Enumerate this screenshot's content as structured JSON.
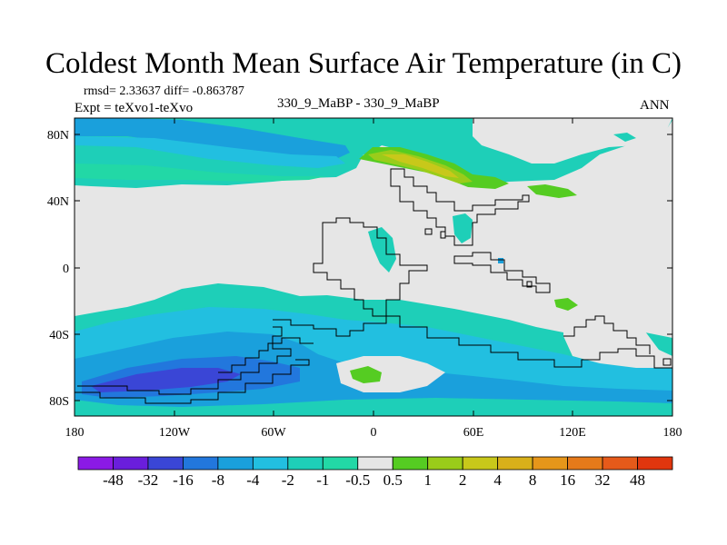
{
  "title": "Coldest Month Mean Surface Air Temperature (in C)",
  "stats": "rmsd= 2.33637 diff= -0.863787",
  "experiment": "Expt = teXvo1-teXvo",
  "center_label": "330_9_MaBP - 330_9_MaBP",
  "season": "ANN",
  "lat_ticks": [
    "80N",
    "40N",
    "0",
    "40S",
    "80S"
  ],
  "lon_ticks": [
    "180",
    "120W",
    "60W",
    "0",
    "60E",
    "120E",
    "180"
  ],
  "colorbar": {
    "colors": [
      "#8b1ae6",
      "#6a1edc",
      "#3a46d6",
      "#2277dd",
      "#1aa0dc",
      "#22bfe0",
      "#1ecfb8",
      "#22d8a6",
      "#e6e6e6",
      "#55cc22",
      "#9acc1a",
      "#c8c81a",
      "#d8b01a",
      "#e6961a",
      "#e67a1a",
      "#e65a1a",
      "#e0360e"
    ],
    "labels": [
      "-48",
      "-32",
      "-16",
      "-8",
      "-4",
      "-2",
      "-1",
      "-0.5",
      "0.5",
      "1",
      "2",
      "4",
      "8",
      "16",
      "32",
      "48"
    ]
  }
}
